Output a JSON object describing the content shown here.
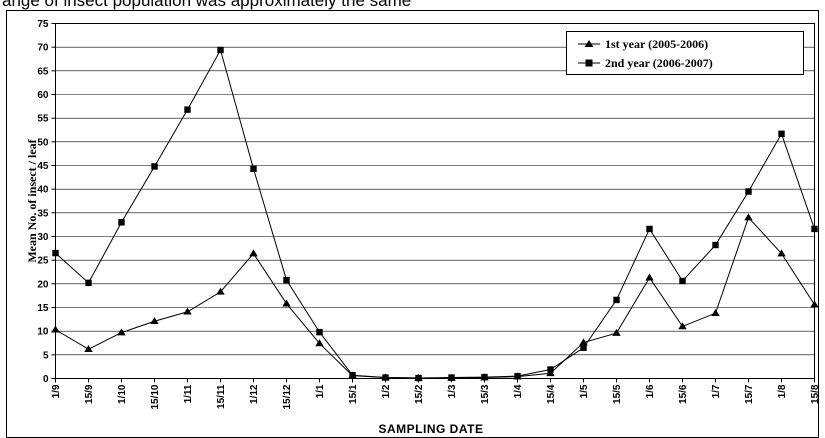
{
  "top_text": "ange of insect population was approximately the same",
  "chart_data": {
    "type": "line",
    "xlabel": "SAMPLING DATE",
    "ylabel": "Mean No. of insect / leaf",
    "ylim": [
      0,
      75
    ],
    "yticks": [
      0,
      5,
      10,
      15,
      20,
      25,
      30,
      35,
      40,
      45,
      50,
      55,
      60,
      65,
      70,
      75
    ],
    "grid": true,
    "legend_position": "top-right",
    "categories": [
      "1/9",
      "15/9",
      "1/10",
      "15/10",
      "1/11",
      "15/11",
      "1/12",
      "15/12",
      "1/1",
      "15/1",
      "1/2",
      "15/2",
      "1/3",
      "15/3",
      "1/4",
      "15/4",
      "1/5",
      "15/5",
      "1/6",
      "15/6",
      "1/7",
      "15/7",
      "1/8",
      "15/8"
    ],
    "series": [
      {
        "name": "1st year (2005-2006)",
        "marker": "triangle",
        "values": [
          10.3,
          6.2,
          9.7,
          12.1,
          14.1,
          18.3,
          26.4,
          15.8,
          7.4,
          0.6,
          0.2,
          0.1,
          0.1,
          0.2,
          0.4,
          1.1,
          7.6,
          9.6,
          21.3,
          11.0,
          13.8,
          34.0,
          26.4,
          15.6
        ]
      },
      {
        "name": "2nd year (2006-2007)",
        "marker": "square",
        "values": [
          26.5,
          20.2,
          33.0,
          44.8,
          56.8,
          69.4,
          44.3,
          20.8,
          9.8,
          0.7,
          0.2,
          0.1,
          0.2,
          0.3,
          0.5,
          1.9,
          6.5,
          16.6,
          31.6,
          20.6,
          28.2,
          39.5,
          51.7,
          31.6
        ]
      }
    ]
  }
}
